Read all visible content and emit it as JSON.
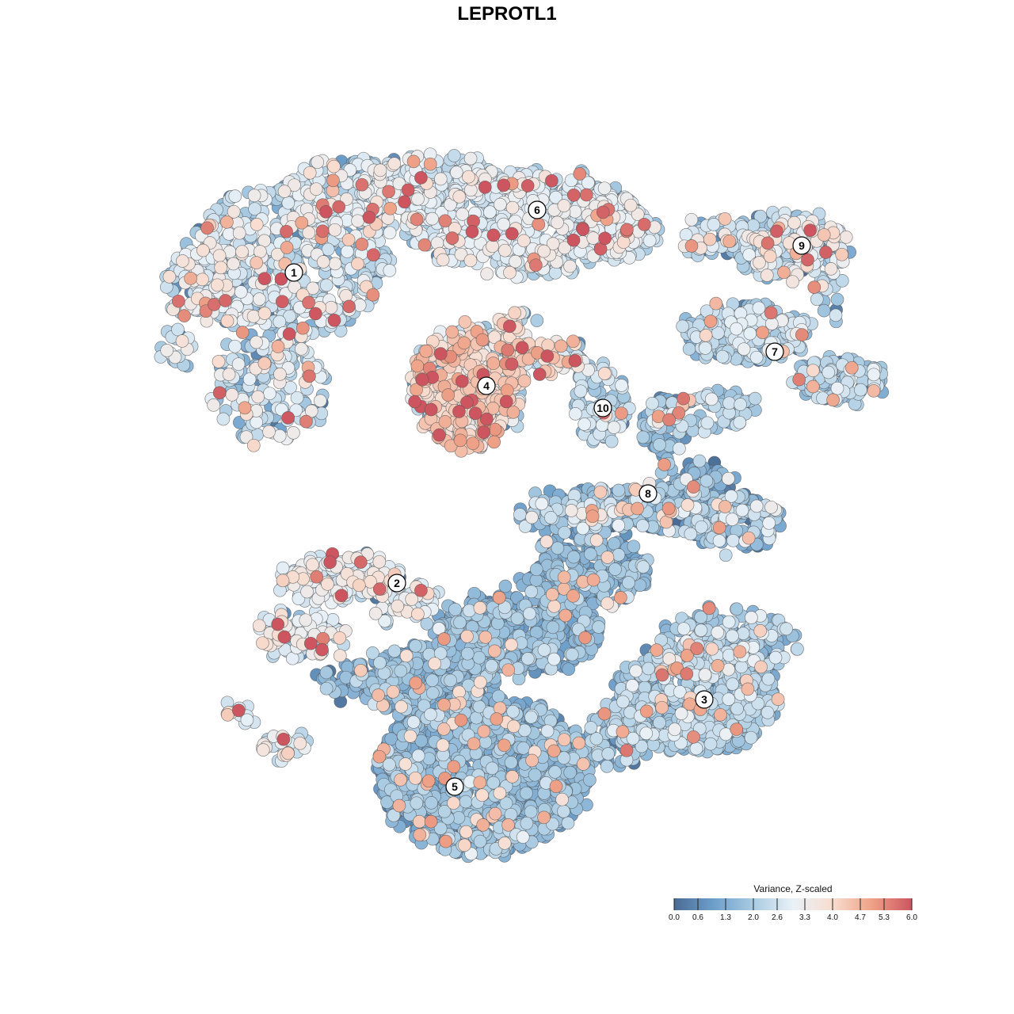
{
  "chart_data": {
    "type": "scatter",
    "title": "LEPROTL1",
    "xlabel": "",
    "ylabel": "",
    "grid": false,
    "legend_position": "bottom-right",
    "color_scale": {
      "title": "Variance, Z-scaled",
      "min": 0.0,
      "max": 6.0,
      "ticks": [
        "0.0",
        "0.6",
        "1.3",
        "2.0",
        "2.6",
        "3.3",
        "4.0",
        "4.7",
        "5.3",
        "6.0"
      ],
      "tick_values": [
        0.0,
        0.6,
        1.3,
        2.0,
        2.6,
        3.3,
        4.0,
        4.7,
        5.3,
        6.0
      ],
      "stops": [
        "#4a6b93",
        "#6d9fcb",
        "#a9cbe2",
        "#e9f1f7",
        "#f8ddd0",
        "#eea186",
        "#cd5560"
      ]
    },
    "clusters": [
      {
        "label": "1",
        "mean": 2.5,
        "spread": 0.7
      },
      {
        "label": "2",
        "mean": 2.9,
        "spread": 0.6
      },
      {
        "label": "3",
        "mean": 1.9,
        "spread": 0.5
      },
      {
        "label": "4",
        "mean": 3.6,
        "spread": 0.8
      },
      {
        "label": "5",
        "mean": 1.5,
        "spread": 0.45
      },
      {
        "label": "6",
        "mean": 2.6,
        "spread": 0.5
      },
      {
        "label": "7",
        "mean": 2.1,
        "spread": 0.5
      },
      {
        "label": "8",
        "mean": 1.6,
        "spread": 0.8
      },
      {
        "label": "9",
        "mean": 2.5,
        "spread": 0.9
      },
      {
        "label": "10",
        "mean": 2.2,
        "spread": 0.6
      }
    ]
  }
}
